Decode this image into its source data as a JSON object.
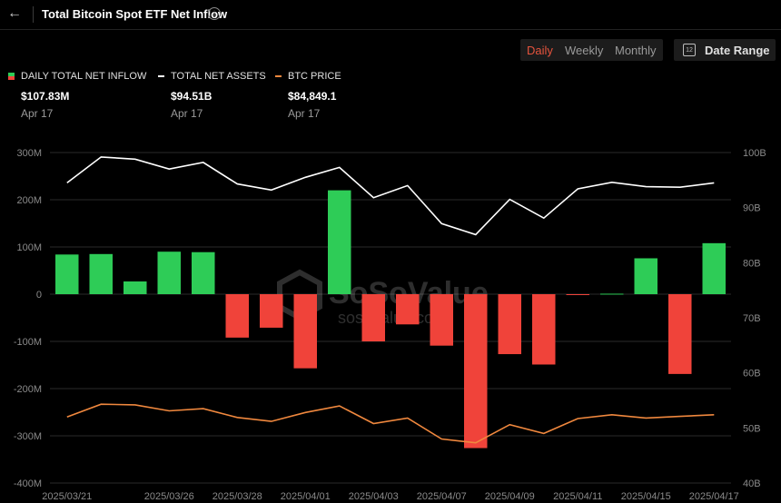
{
  "header": {
    "back_icon": "arrow-left-icon",
    "title": "Total Bitcoin Spot ETF Net Inflow",
    "info_icon": "info-icon"
  },
  "controls": {
    "periods": [
      "Daily",
      "Weekly",
      "Monthly"
    ],
    "selected_period": "Daily",
    "date_range_label": "Date Range",
    "date_range_icon": "calendar-icon",
    "calendar_icon_text": "12"
  },
  "legend": [
    {
      "label": "DAILY TOTAL NET INFLOW",
      "value": "$107.83M",
      "date": "Apr 17",
      "color": "#2ecc57"
    },
    {
      "label": "TOTAL NET ASSETS",
      "value": "$94.51B",
      "date": "Apr 17",
      "color": "#ffffff"
    },
    {
      "label": "BTC PRICE",
      "value": "$84,849.1",
      "date": "Apr 17",
      "color": "#f0883e"
    }
  ],
  "watermark": {
    "brand": "SoSoValue",
    "url": "sosovalue.co"
  },
  "colors": {
    "positive": "#2ecc57",
    "negative": "#f0433a",
    "assets_line": "#ffffff",
    "price_line": "#f0883e",
    "grid": "#2a2a2a",
    "axis_text": "#8a8a8a"
  },
  "chart_data": {
    "type": "bar",
    "title": "Total Bitcoin Spot ETF Net Inflow",
    "x": [
      "2025/03/21",
      "2025/03/24",
      "2025/03/25",
      "2025/03/26",
      "2025/03/27",
      "2025/03/28",
      "2025/03/31",
      "2025/04/01",
      "2025/04/02",
      "2025/04/03",
      "2025/04/04",
      "2025/04/07",
      "2025/04/08",
      "2025/04/09",
      "2025/04/10",
      "2025/04/11",
      "2025/04/14",
      "2025/04/15",
      "2025/04/16",
      "2025/04/17"
    ],
    "x_tick_labels": [
      "2025/03/21",
      "2025/03/26",
      "2025/03/28",
      "2025/04/01",
      "2025/04/03",
      "2025/04/07",
      "2025/04/09",
      "2025/04/11",
      "2025/04/15",
      "2025/04/17"
    ],
    "x_tick_dates": [
      "2025/03/21",
      "2025/03/26",
      "2025/03/28",
      "2025/04/01",
      "2025/04/03",
      "2025/04/07",
      "2025/04/09",
      "2025/04/11",
      "2025/04/15",
      "2025/04/17"
    ],
    "y_left": {
      "ticks": [
        "300M",
        "200M",
        "100M",
        "0",
        "-100M",
        "-200M",
        "-300M",
        "-400M"
      ],
      "range": [
        -400,
        300
      ],
      "unit": "M"
    },
    "y_right": {
      "ticks": [
        "100B",
        "90B",
        "80B",
        "70B",
        "60B",
        "50B",
        "40B"
      ],
      "range": [
        40,
        100
      ],
      "unit": "B"
    },
    "grid": true,
    "series": [
      {
        "name": "DAILY TOTAL NET INFLOW",
        "kind": "bar",
        "axis": "left",
        "values": [
          84,
          85,
          27,
          90,
          89,
          -92,
          -71,
          -157,
          220,
          -100,
          -64,
          -109,
          -326,
          -127,
          -149,
          -1,
          1,
          76,
          -169,
          108
        ]
      },
      {
        "name": "TOTAL NET ASSETS",
        "kind": "line",
        "axis": "right",
        "values": [
          94.5,
          99.2,
          98.8,
          97.0,
          98.2,
          94.3,
          93.2,
          95.5,
          97.3,
          91.8,
          94.0,
          87.1,
          85.1,
          91.5,
          88.1,
          93.4,
          94.6,
          93.8,
          93.7,
          94.5
        ]
      },
      {
        "name": "BTC PRICE",
        "kind": "line",
        "axis": "right",
        "values": [
          52.0,
          54.3,
          54.2,
          53.1,
          53.5,
          51.9,
          51.2,
          52.8,
          54.0,
          50.8,
          51.8,
          48.0,
          47.3,
          50.6,
          49.0,
          51.7,
          52.4,
          51.8,
          52.1,
          52.4
        ]
      }
    ]
  }
}
